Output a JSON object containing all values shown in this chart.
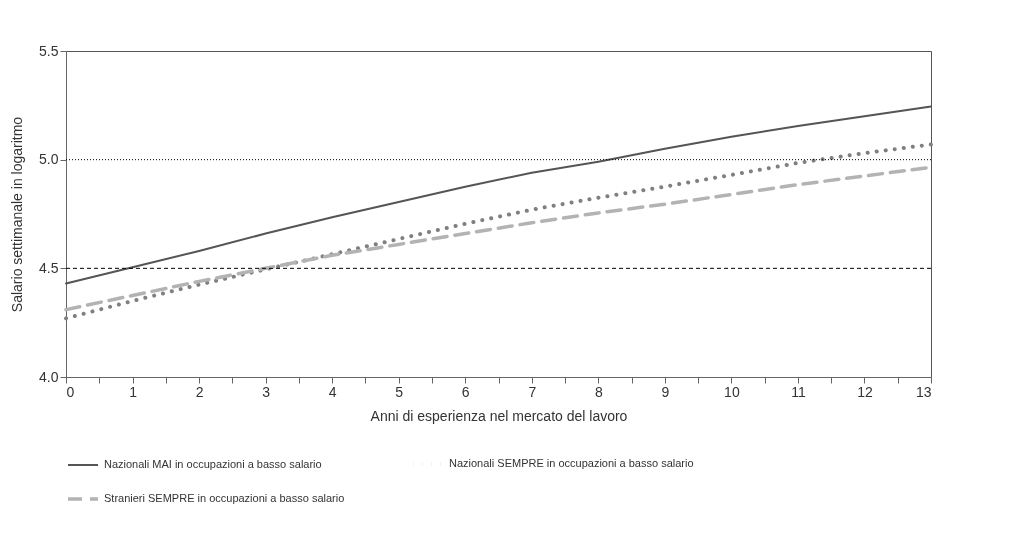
{
  "chart_data": {
    "type": "line",
    "xlabel": "Anni di esperienza nel mercato del lavoro",
    "ylabel": "Salario settimanale in logaritmo",
    "x": [
      0,
      1,
      2,
      3,
      4,
      5,
      6,
      7,
      8,
      9,
      10,
      11,
      12,
      13
    ],
    "series": [
      {
        "name": "Nazionali MAI in occupazioni a basso salario",
        "color": "#555555",
        "line_style": "solid",
        "values": [
          4.43,
          4.505,
          4.58,
          4.66,
          4.735,
          4.805,
          4.875,
          4.94,
          4.99,
          5.05,
          5.105,
          5.155,
          5.2,
          5.245
        ]
      },
      {
        "name": "Nazionali SEMPRE in occupazioni a basso salario",
        "color": "#808080",
        "line_style": "dotted",
        "values": [
          4.27,
          4.35,
          4.425,
          4.495,
          4.565,
          4.635,
          4.705,
          4.77,
          4.825,
          4.876,
          4.93,
          4.985,
          5.03,
          5.07
        ]
      },
      {
        "name": "Stranieri SEMPRE in occupazioni a basso salario",
        "color": "#b3b3b3",
        "line_style": "dashed",
        "values": [
          4.31,
          4.375,
          4.44,
          4.5,
          4.56,
          4.61,
          4.66,
          4.71,
          4.755,
          4.795,
          4.84,
          4.885,
          4.925,
          4.965
        ]
      }
    ],
    "xlim": [
      0,
      13
    ],
    "xticks": [
      0,
      {
        "value": 0.5,
        "label": null
      },
      1,
      {
        "value": 1.5,
        "label": null
      },
      2,
      {
        "value": 2.5,
        "label": null
      },
      3,
      {
        "value": 3.5,
        "label": null
      },
      4,
      {
        "value": 4.5,
        "label": null
      },
      5,
      {
        "value": 5.5,
        "label": null
      },
      6,
      {
        "value": 6.5,
        "label": null
      },
      7,
      {
        "value": 7.5,
        "label": null
      },
      8,
      {
        "value": 8.5,
        "label": null
      },
      9,
      {
        "value": 9.5,
        "label": null
      },
      10,
      {
        "value": 10.5,
        "label": null
      },
      11,
      {
        "value": 11.5,
        "label": null
      },
      12,
      {
        "value": 12.5,
        "label": null
      },
      13
    ],
    "ylim": [
      4.0,
      5.5
    ],
    "yticks": [
      {
        "value": 4.0,
        "label": "4.0"
      },
      {
        "value": 4.5,
        "label": "4.5"
      },
      {
        "value": 5.0,
        "label": "5.0"
      },
      {
        "value": 5.5,
        "label": "5.5"
      }
    ],
    "ref_lines": [
      {
        "axis": "y",
        "value": 5.0,
        "color": "#000000",
        "line_style": "dotted"
      },
      {
        "axis": "y",
        "value": 4.5,
        "color": "#000000",
        "line_style": "dashed"
      }
    ],
    "grid": false,
    "legend": "bottom"
  }
}
